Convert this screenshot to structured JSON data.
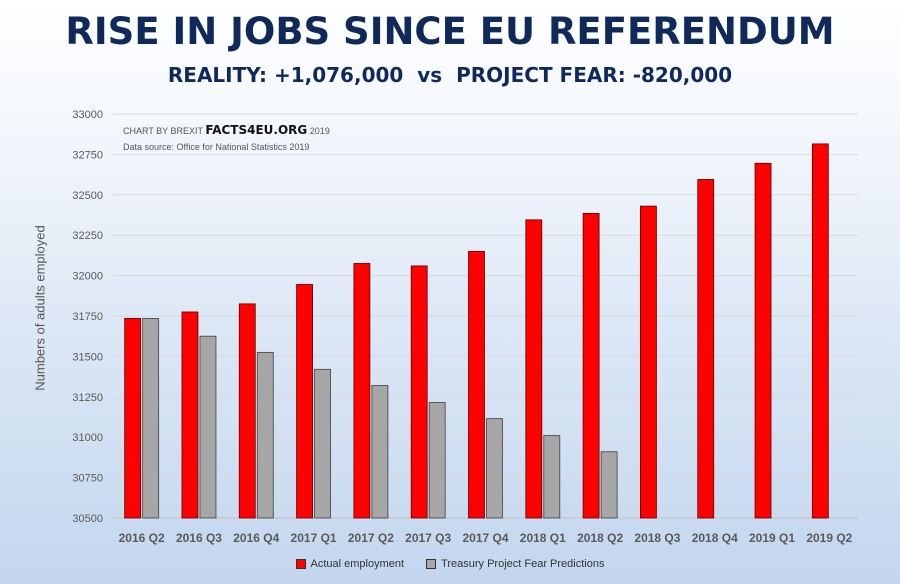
{
  "title": "RISE IN JOBS SINCE EU REFERENDUM",
  "subtitle": "REALITY: +1,076,000  vs  PROJECT FEAR: -820,000",
  "credit": {
    "prefix": "CHART BY BREXIT",
    "brand": "FACTS4EU.ORG",
    "year": "2019"
  },
  "source": "Data source: Office for National Statistics 2019",
  "colors": {
    "actual": "#ff0000",
    "treasury": "#a6a6a6",
    "gridline": "#d9d9d9"
  },
  "chart_data": {
    "type": "bar",
    "ylabel": "Numbers of adults employed",
    "xlabel": "",
    "ylim": [
      30500,
      33000
    ],
    "yticks": [
      30500,
      30750,
      31000,
      31250,
      31500,
      31750,
      32000,
      32250,
      32500,
      32750,
      33000
    ],
    "grid": true,
    "legend_position": "bottom",
    "categories": [
      "2016 Q2",
      "2016 Q3",
      "2016 Q4",
      "2017 Q1",
      "2017 Q2",
      "2017 Q3",
      "2017 Q4",
      "2018 Q1",
      "2018 Q2",
      "2018 Q3",
      "2018 Q4",
      "2019 Q1",
      "2019 Q2"
    ],
    "series": [
      {
        "name": "Actual employment",
        "color": "#ff0000",
        "values": [
          31735,
          31775,
          31825,
          31945,
          32075,
          32060,
          32150,
          32345,
          32385,
          32430,
          32595,
          32695,
          32815
        ]
      },
      {
        "name": "Treasury Project Fear Predictions",
        "color": "#a6a6a6",
        "values": [
          31735,
          31625,
          31525,
          31420,
          31320,
          31215,
          31115,
          31010,
          30910,
          null,
          null,
          null,
          null
        ]
      }
    ]
  }
}
